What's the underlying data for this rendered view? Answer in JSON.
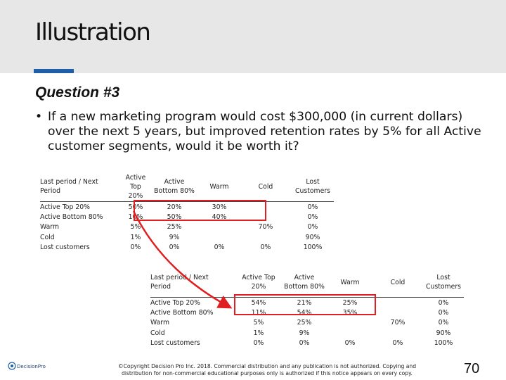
{
  "slide": {
    "title": "Illustration",
    "question": "Question #3",
    "bullet_marker": "•",
    "bullet": "If a new marketing program would cost $300,000 (in current dollars) over the next 5 years, but improved retention rates by 5% for all Active customer segments, would it be worth it?",
    "page_number": "70",
    "copyright_line1": "©Copyright Decision Pro Inc. 2018. Commercial distribution and any publication is not authorized. Copying and",
    "copyright_line2": "distribution for non-commercial educational purposes only is authorized if this notice appears on every copy.",
    "logo_text": "DecisionPro",
    "accent_color": "#1f5fa8",
    "highlight_color": "#e02020"
  },
  "table1": {
    "corner_line1": "Last period / Next",
    "corner_line2": "Period",
    "headers": [
      {
        "l1": "Active Top",
        "l2": "20%"
      },
      {
        "l1": "Active",
        "l2": "Bottom 80%"
      },
      {
        "l1": "Warm",
        "l2": ""
      },
      {
        "l1": "Cold",
        "l2": ""
      },
      {
        "l1": "Lost",
        "l2": "Customers"
      }
    ],
    "rows": [
      {
        "label": "Active Top 20%",
        "cells": [
          "50%",
          "20%",
          "30%",
          "",
          "0%"
        ]
      },
      {
        "label": "Active Bottom 80%",
        "cells": [
          "10%",
          "50%",
          "40%",
          "",
          "0%"
        ]
      },
      {
        "label": "Warm",
        "cells": [
          "5%",
          "25%",
          "",
          "70%",
          "0%"
        ]
      },
      {
        "label": "Cold",
        "cells": [
          "1%",
          "9%",
          "",
          "",
          "90%"
        ]
      },
      {
        "label": "Lost customers",
        "cells": [
          "0%",
          "0%",
          "0%",
          "0%",
          "100%"
        ]
      }
    ]
  },
  "table2": {
    "corner_line1": "Last period / Next",
    "corner_line2": "Period",
    "headers": [
      {
        "l1": "Active Top",
        "l2": "20%"
      },
      {
        "l1": "Active",
        "l2": "Bottom 80%"
      },
      {
        "l1": "Warm",
        "l2": ""
      },
      {
        "l1": "Cold",
        "l2": ""
      },
      {
        "l1": "Lost",
        "l2": "Customers"
      }
    ],
    "rows": [
      {
        "label": "Active Top 20%",
        "cells": [
          "54%",
          "21%",
          "25%",
          "",
          "0%"
        ]
      },
      {
        "label": "Active Bottom 80%",
        "cells": [
          "11%",
          "54%",
          "35%",
          "",
          "0%"
        ]
      },
      {
        "label": "Warm",
        "cells": [
          "5%",
          "25%",
          "",
          "70%",
          "0%"
        ]
      },
      {
        "label": "Cold",
        "cells": [
          "1%",
          "9%",
          "",
          "",
          "90%"
        ]
      },
      {
        "label": "Lost customers",
        "cells": [
          "0%",
          "0%",
          "0%",
          "0%",
          "100%"
        ]
      }
    ]
  }
}
